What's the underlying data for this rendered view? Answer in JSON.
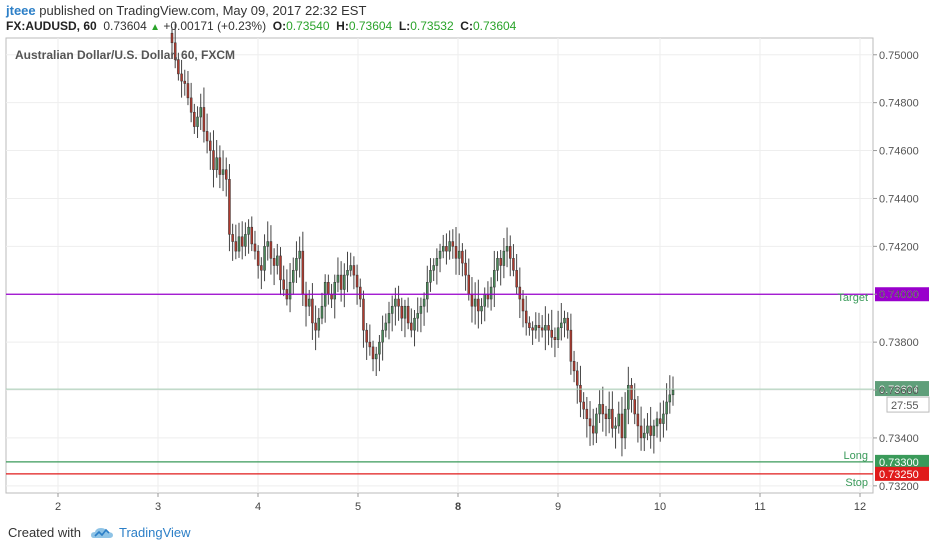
{
  "header": {
    "user": "jteee",
    "published": "published on TradingView.com, May 09, 2017 22:32 EST",
    "symbol": "FX:AUDUSD, 60",
    "last": "0.73604",
    "change": "+0.00171 (+0.23%)",
    "o_label": "O:",
    "o_value": "0.73540",
    "h_label": "H:",
    "h_value": "0.73604",
    "l_label": "L:",
    "l_value": "0.73532",
    "c_label": "C:",
    "c_value": "0.73604"
  },
  "footer": {
    "created_with": "Created with",
    "brand": "TradingView",
    "brand_icon": "cloud-logo-icon"
  },
  "chart_data": {
    "type": "candlestick",
    "title": "Australian Dollar/U.S. Dollar, 60, FXCM",
    "ylim": [
      0.7317,
      0.7507
    ],
    "y_ticks": [
      "0.75000",
      "0.74800",
      "0.74600",
      "0.74400",
      "0.74200",
      "0.74000",
      "0.73800",
      "0.73600",
      "0.73400",
      "0.73200"
    ],
    "x_ticks": [
      "2",
      "3",
      "4",
      "5",
      "8",
      "9",
      "10",
      "11",
      "12"
    ],
    "x_bold": [
      "8"
    ],
    "grid": true,
    "colors": {
      "up": "#4a8a5a",
      "down": "#b03a2e",
      "target": "#9900cc",
      "stop": "#e01b1b",
      "long": "#3a9a5a",
      "last": "#5f9f7a"
    },
    "levels": [
      {
        "name": "Target",
        "value": 0.74,
        "label": "0.74000",
        "color": "#9900cc"
      },
      {
        "name": "Long",
        "value": 0.733,
        "label": "0.73300",
        "color": "#3a9a5a"
      },
      {
        "name": "Stop",
        "value": 0.7325,
        "label": "0.73250",
        "color": "#e01b1b"
      }
    ],
    "last_price": {
      "value": 0.73604,
      "label": "0.73604",
      "countdown": "27:55"
    },
    "closes": [
      0.7505,
      0.7498,
      0.7492,
      0.7489,
      0.7488,
      0.7482,
      0.7476,
      0.747,
      0.7474,
      0.7478,
      0.7468,
      0.7464,
      0.746,
      0.7452,
      0.7457,
      0.745,
      0.7452,
      0.7448,
      0.7425,
      0.7422,
      0.7418,
      0.7424,
      0.742,
      0.7425,
      0.7428,
      0.7421,
      0.7418,
      0.7412,
      0.741,
      0.742,
      0.7422,
      0.7415,
      0.7412,
      0.7416,
      0.7406,
      0.7402,
      0.7398,
      0.7405,
      0.741,
      0.7415,
      0.7418,
      0.74,
      0.7395,
      0.7398,
      0.7388,
      0.7385,
      0.739,
      0.7395,
      0.7405,
      0.74,
      0.7398,
      0.7405,
      0.7408,
      0.7402,
      0.7408,
      0.741,
      0.7412,
      0.7408,
      0.7403,
      0.7398,
      0.7385,
      0.738,
      0.7378,
      0.7373,
      0.7375,
      0.738,
      0.7385,
      0.7388,
      0.7392,
      0.7395,
      0.7398,
      0.7395,
      0.739,
      0.7395,
      0.7388,
      0.7385,
      0.739,
      0.7392,
      0.7395,
      0.7398,
      0.7405,
      0.741,
      0.7412,
      0.7415,
      0.7418,
      0.742,
      0.7418,
      0.7422,
      0.742,
      0.7415,
      0.7418,
      0.7413,
      0.7408,
      0.74,
      0.7395,
      0.7398,
      0.7393,
      0.7395,
      0.74,
      0.7398,
      0.7403,
      0.741,
      0.7415,
      0.7412,
      0.7418,
      0.742,
      0.7415,
      0.741,
      0.7403,
      0.7398,
      0.7393,
      0.7388,
      0.7386,
      0.7385,
      0.7387,
      0.7386,
      0.7385,
      0.7387,
      0.7385,
      0.7382,
      0.7381,
      0.7386,
      0.7388,
      0.739,
      0.7385,
      0.7372,
      0.7368,
      0.7362,
      0.7355,
      0.7352,
      0.7348,
      0.7345,
      0.7342,
      0.735,
      0.7354,
      0.735,
      0.7348,
      0.7352,
      0.7344,
      0.7345,
      0.735,
      0.734,
      0.7352,
      0.7362,
      0.7356,
      0.735,
      0.7345,
      0.734,
      0.7342,
      0.7345,
      0.7341,
      0.7345,
      0.7348,
      0.7346,
      0.735,
      0.7355,
      0.7358,
      0.736
    ]
  }
}
